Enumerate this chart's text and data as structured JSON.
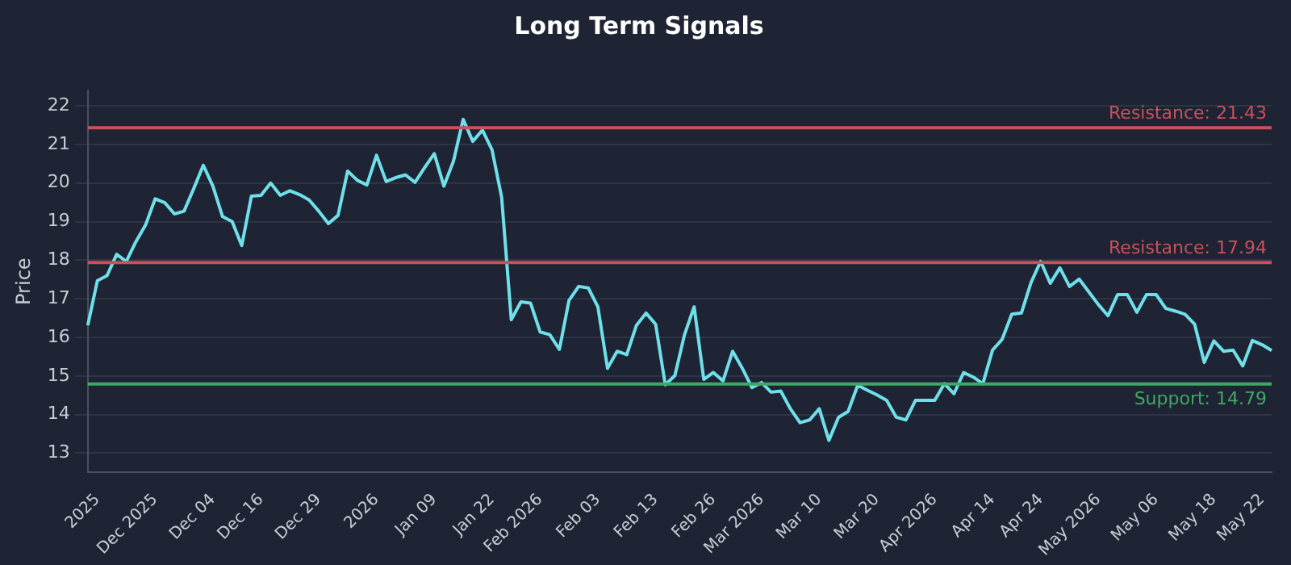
{
  "chart_data": {
    "type": "line",
    "title": "Long Term Signals",
    "ylabel": "Price",
    "categories": [
      null,
      "2025",
      null,
      null,
      null,
      null,
      null,
      "Dec 2025",
      null,
      null,
      null,
      null,
      null,
      "Dec 04",
      null,
      null,
      null,
      null,
      "Dec 16",
      null,
      null,
      null,
      null,
      null,
      "Dec 29",
      null,
      null,
      null,
      null,
      null,
      "2026",
      null,
      null,
      null,
      null,
      null,
      "Jan 09",
      null,
      null,
      null,
      null,
      null,
      "Jan 22",
      null,
      null,
      null,
      null,
      "Feb 2026",
      null,
      null,
      null,
      null,
      null,
      "Feb 03",
      null,
      null,
      null,
      null,
      null,
      "Feb 13",
      null,
      null,
      null,
      null,
      null,
      "Feb 26",
      null,
      null,
      null,
      null,
      "Mar 2026",
      null,
      null,
      null,
      null,
      null,
      "Mar 10",
      null,
      null,
      null,
      null,
      null,
      "Mar 20",
      null,
      null,
      null,
      null,
      null,
      "Apr 2026",
      null,
      null,
      null,
      null,
      null,
      "Apr 14",
      null,
      null,
      null,
      null,
      "Apr 24",
      null,
      null,
      null,
      null,
      null,
      "May 2026",
      null,
      null,
      null,
      null,
      null,
      "May 06",
      null,
      null,
      null,
      null,
      null,
      "May 18",
      null,
      null,
      null,
      null,
      "May 22",
      null
    ],
    "series": [
      {
        "color": "#6fe0ea",
        "values": [
          16.31,
          17.47,
          17.6,
          18.15,
          17.97,
          18.48,
          18.91,
          19.59,
          19.49,
          19.2,
          19.27,
          19.85,
          20.46,
          19.92,
          19.13,
          19.0,
          18.38,
          19.66,
          19.68,
          20.0,
          19.68,
          19.8,
          19.7,
          19.56,
          19.27,
          18.95,
          19.16,
          20.31,
          20.07,
          19.95,
          20.72,
          20.04,
          20.14,
          20.21,
          20.02,
          20.4,
          20.76,
          19.92,
          20.57,
          21.65,
          21.08,
          21.37,
          20.86,
          19.63,
          16.46,
          16.92,
          16.89,
          16.14,
          16.07,
          15.69,
          16.96,
          17.32,
          17.28,
          16.79,
          15.2,
          15.64,
          15.55,
          16.31,
          16.63,
          16.34,
          14.77,
          15.01,
          16.07,
          16.79,
          14.91,
          15.09,
          14.87,
          15.64,
          15.2,
          14.7,
          14.83,
          14.58,
          14.61,
          14.15,
          13.79,
          13.86,
          14.15,
          13.33,
          13.93,
          14.08,
          14.76,
          14.63,
          14.51,
          14.37,
          13.93,
          13.86,
          14.37,
          14.37,
          14.37,
          14.8,
          14.54,
          15.09,
          14.97,
          14.8,
          15.67,
          15.95,
          16.6,
          16.63,
          17.42,
          17.97,
          17.4,
          17.8,
          17.32,
          17.51,
          17.18,
          16.85,
          16.56,
          17.11,
          17.11,
          16.65,
          17.11,
          17.11,
          16.75,
          16.68,
          16.6,
          16.34,
          15.35,
          15.91,
          15.64,
          15.67,
          15.26,
          15.92,
          15.81,
          15.66
        ]
      }
    ],
    "ylim": [
      12.5,
      22.4
    ],
    "yticks": [
      13,
      14,
      15,
      16,
      17,
      18,
      19,
      20,
      21,
      22
    ],
    "ref_lines": [
      {
        "axis": "y",
        "value": 21.43,
        "label": "Resistance: 21.43",
        "color": "#c9505c"
      },
      {
        "axis": "y",
        "value": 17.94,
        "label": "Resistance: 17.94",
        "color": "#c9505c"
      },
      {
        "axis": "y",
        "value": 14.79,
        "label": "Support: 14.79",
        "color": "#3fa864"
      }
    ],
    "grid": "y",
    "legend": false,
    "marker": "none",
    "line_style": "solid"
  }
}
